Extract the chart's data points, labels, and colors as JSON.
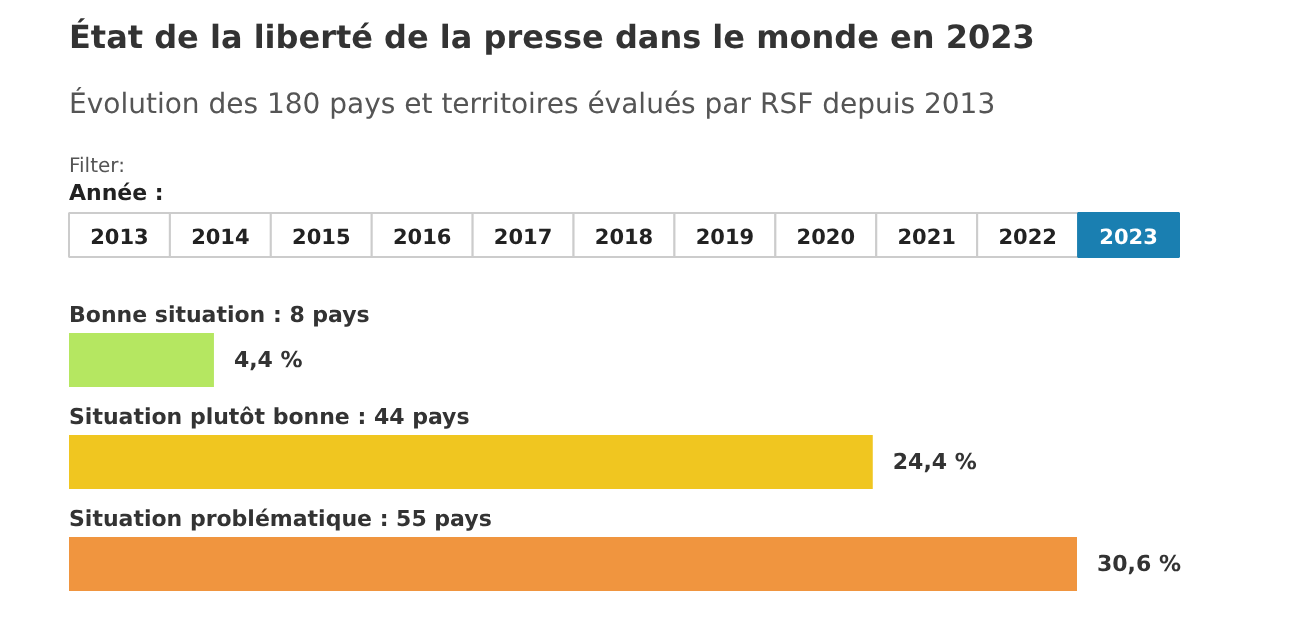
{
  "chart_data": {
    "type": "bar",
    "orientation": "horizontal",
    "title": "État de la liberté de la presse dans le monde en 2023",
    "subtitle": "Évolution des 180 pays et territoires évalués par RSF depuis 2013",
    "annotations": [
      "Filter:",
      "Année :",
      "2013",
      "2014",
      "2015",
      "2016",
      "2017",
      "2018",
      "2019",
      "2020",
      "2021",
      "2022",
      "2023"
    ],
    "categories": [
      "Bonne situation : 8 pays",
      "Situation plutôt bonne : 44 pays",
      "Situation problématique : 55 pays"
    ],
    "values": [
      4.4,
      24.4,
      30.6
    ],
    "colors": [
      "#b5e761",
      "#f0c620",
      "#f0953f"
    ],
    "value_labels": [
      "4,4 %",
      "24,4 %",
      "30,6 %"
    ],
    "grid": false
  }
}
